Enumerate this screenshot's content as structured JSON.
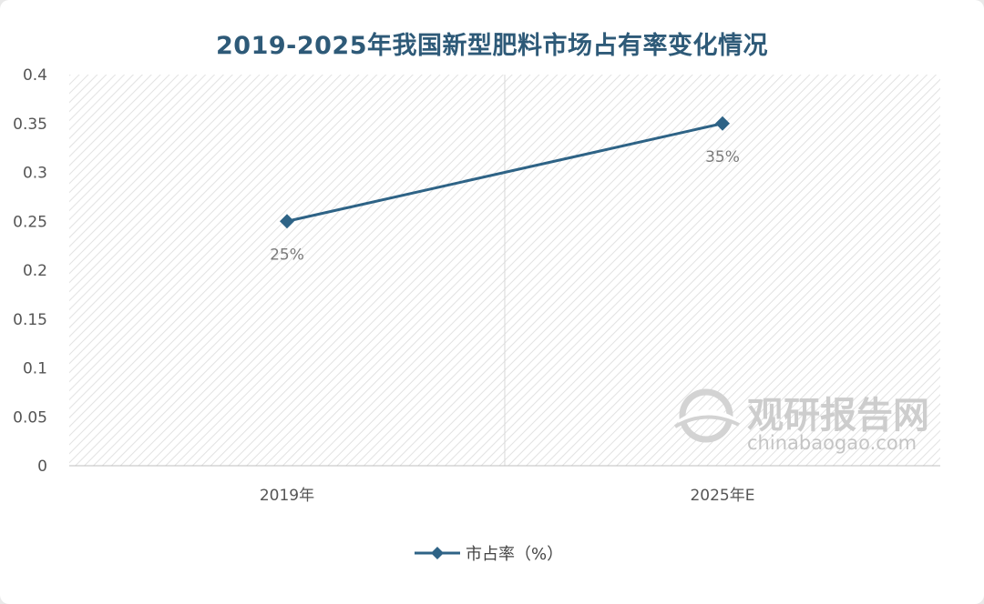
{
  "chart_data": {
    "type": "line",
    "title": "2019-2025年我国新型肥料市场占有率变化情况",
    "categories": [
      "2019年",
      "2025年E"
    ],
    "series": [
      {
        "name": "市占率（%）",
        "values": [
          0.25,
          0.35
        ],
        "data_labels": [
          "25%",
          "35%"
        ],
        "marker": "diamond",
        "color": "#2e6386"
      }
    ],
    "ylim": [
      0,
      0.4
    ],
    "yticks": [
      "0",
      "0.05",
      "0.1",
      "0.15",
      "0.2",
      "0.25",
      "0.3",
      "0.35",
      "0.4"
    ],
    "ytick_values": [
      0,
      0.05,
      0.1,
      0.15,
      0.2,
      0.25,
      0.3,
      0.35,
      0.4
    ],
    "grid": "vertical category dividers",
    "plot_background": "diagonal hatch",
    "legend_position": "bottom-center"
  },
  "watermark": {
    "name_cn": "观研报告网",
    "name_en": "chinabaogao.com"
  }
}
